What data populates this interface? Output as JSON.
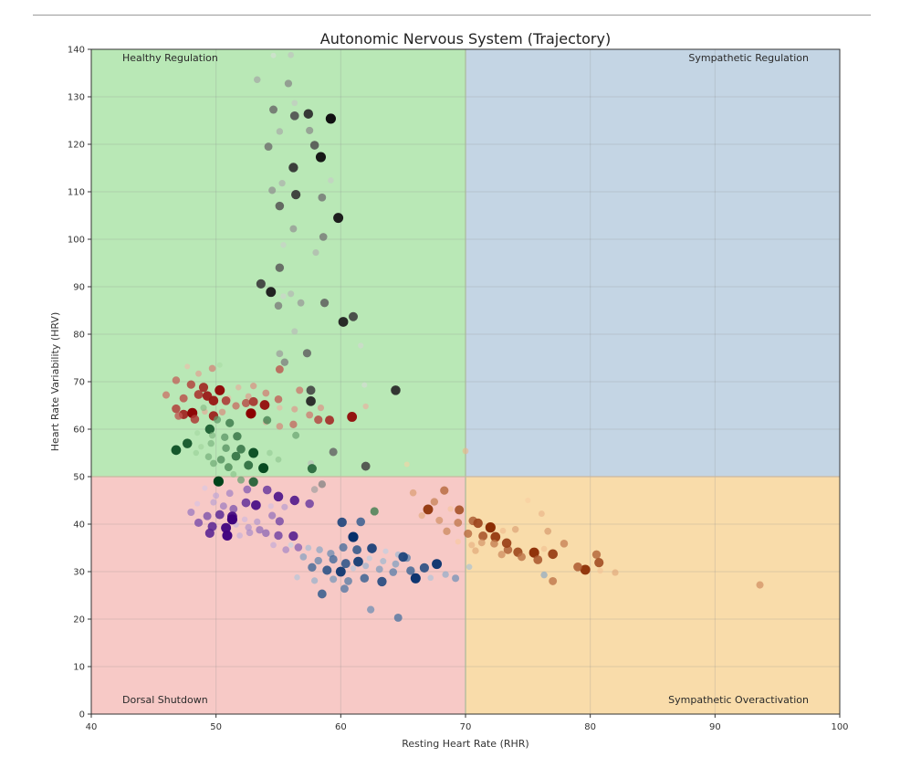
{
  "chart_data": {
    "type": "scatter",
    "title": "Autonomic Nervous System (Trajectory)",
    "xlabel": "Resting Heart Rate (RHR)",
    "ylabel": "Heart Rate Variability (HRV)",
    "xlim": [
      40,
      100
    ],
    "ylim": [
      0,
      140
    ],
    "x_ticks": [
      40,
      50,
      60,
      70,
      80,
      90,
      100
    ],
    "y_ticks": [
      0,
      10,
      20,
      30,
      40,
      50,
      60,
      70,
      80,
      90,
      100,
      110,
      120,
      130,
      140
    ],
    "grid": true,
    "thresholds": {
      "x": 70,
      "y": 50
    },
    "quadrants": [
      {
        "name": "Healthy Regulation",
        "x_range": [
          40,
          70
        ],
        "y_range": [
          50,
          140
        ],
        "color": "#b9e8b6",
        "label_anchor": "top-left"
      },
      {
        "name": "Sympathetic Regulation",
        "x_range": [
          70,
          100
        ],
        "y_range": [
          50,
          140
        ],
        "color": "#c4d5e4",
        "label_anchor": "top-right"
      },
      {
        "name": "Dorsal Shutdown",
        "x_range": [
          40,
          70
        ],
        "y_range": [
          0,
          50
        ],
        "color": "#f7c9c6",
        "label_anchor": "bottom-left"
      },
      {
        "name": "Sympathetic Overactivation",
        "x_range": [
          70,
          100
        ],
        "y_range": [
          0,
          50
        ],
        "color": "#f9dcaa",
        "label_anchor": "bottom-right"
      }
    ],
    "series": [
      {
        "name": "Greys cluster",
        "colormap": [
          "#dddddd",
          "#111111"
        ],
        "points": [
          [
            54.6,
            138.7
          ],
          [
            56.0,
            138.8
          ],
          [
            53.3,
            133.6
          ],
          [
            55.8,
            132.8
          ],
          [
            54.6,
            127.3
          ],
          [
            56.3,
            126.0
          ],
          [
            57.4,
            126.4
          ],
          [
            59.2,
            125.4
          ],
          [
            56.3,
            128.7
          ],
          [
            55.1,
            122.7
          ],
          [
            57.5,
            122.9
          ],
          [
            54.2,
            119.5
          ],
          [
            57.9,
            119.8
          ],
          [
            56.2,
            115.1
          ],
          [
            58.4,
            117.3
          ],
          [
            59.2,
            112.4
          ],
          [
            55.3,
            111.8
          ],
          [
            54.5,
            110.3
          ],
          [
            58.5,
            108.8
          ],
          [
            55.1,
            107.0
          ],
          [
            56.4,
            109.4
          ],
          [
            59.8,
            104.5
          ],
          [
            55.4,
            98.8
          ],
          [
            58.0,
            97.2
          ],
          [
            56.2,
            102.2
          ],
          [
            58.6,
            100.5
          ],
          [
            55.1,
            94.0
          ],
          [
            53.6,
            90.6
          ],
          [
            54.4,
            88.9
          ],
          [
            55.4,
            88.0
          ],
          [
            56.0,
            88.5
          ],
          [
            56.8,
            86.6
          ],
          [
            55.0,
            86.0
          ],
          [
            58.7,
            86.6
          ],
          [
            61.0,
            83.7
          ],
          [
            60.2,
            82.6
          ],
          [
            61.6,
            77.6
          ],
          [
            56.3,
            80.6
          ],
          [
            55.1,
            75.9
          ],
          [
            55.5,
            74.1
          ],
          [
            57.3,
            76.0
          ],
          [
            57.6,
            68.2
          ],
          [
            57.6,
            65.9
          ],
          [
            61.9,
            69.3
          ],
          [
            57.6,
            52.8
          ],
          [
            57.9,
            47.3
          ],
          [
            58.5,
            48.4
          ],
          [
            59.4,
            55.2
          ],
          [
            62.0,
            52.2
          ],
          [
            64.4,
            68.2
          ]
        ]
      },
      {
        "name": "Reds cluster",
        "colormap": [
          "#f7b5a8",
          "#8b0000"
        ],
        "points": [
          [
            47.7,
            73.2
          ],
          [
            48.6,
            71.7
          ],
          [
            49.7,
            72.8
          ],
          [
            46.8,
            70.3
          ],
          [
            48.0,
            69.4
          ],
          [
            49.0,
            68.8
          ],
          [
            50.3,
            68.2
          ],
          [
            51.8,
            68.8
          ],
          [
            53.0,
            69.1
          ],
          [
            46.0,
            67.2
          ],
          [
            47.4,
            66.5
          ],
          [
            48.6,
            67.3
          ],
          [
            49.8,
            66.0
          ],
          [
            51.0,
            66.6
          ],
          [
            52.6,
            66.9
          ],
          [
            54.0,
            67.6
          ],
          [
            55.0,
            66.3
          ],
          [
            46.8,
            64.3
          ],
          [
            47.4,
            63.1
          ],
          [
            48.1,
            63.4
          ],
          [
            49.1,
            63.7
          ],
          [
            50.5,
            63.6
          ],
          [
            51.6,
            64.9
          ],
          [
            52.4,
            65.5
          ],
          [
            53.0,
            65.8
          ],
          [
            53.9,
            65.1
          ],
          [
            55.1,
            64.5
          ],
          [
            56.3,
            64.2
          ],
          [
            57.5,
            63.0
          ],
          [
            47.0,
            62.8
          ],
          [
            48.3,
            62.1
          ],
          [
            49.8,
            62.8
          ],
          [
            52.8,
            63.3
          ],
          [
            54.0,
            61.5
          ],
          [
            55.1,
            60.6
          ],
          [
            56.2,
            61.0
          ],
          [
            58.2,
            62.0
          ],
          [
            59.1,
            61.9
          ],
          [
            60.9,
            62.6
          ],
          [
            62.0,
            64.8
          ],
          [
            58.4,
            64.5
          ],
          [
            56.7,
            68.2
          ],
          [
            55.1,
            72.6
          ],
          [
            50.8,
            66.0
          ],
          [
            49.3,
            67.0
          ]
        ]
      },
      {
        "name": "Greens cluster",
        "colormap": [
          "#a7dba2",
          "#00441b"
        ],
        "points": [
          [
            50.3,
            73.5
          ],
          [
            49.0,
            64.5
          ],
          [
            50.1,
            62.0
          ],
          [
            51.1,
            61.3
          ],
          [
            49.5,
            60.0
          ],
          [
            48.5,
            59.2
          ],
          [
            49.7,
            58.7
          ],
          [
            50.7,
            58.3
          ],
          [
            51.7,
            58.5
          ],
          [
            47.7,
            57.0
          ],
          [
            48.8,
            56.3
          ],
          [
            49.6,
            57.0
          ],
          [
            50.8,
            56.0
          ],
          [
            52.0,
            55.8
          ],
          [
            46.8,
            55.6
          ],
          [
            48.4,
            55.0
          ],
          [
            49.4,
            54.2
          ],
          [
            50.4,
            53.6
          ],
          [
            51.6,
            54.3
          ],
          [
            53.0,
            55.0
          ],
          [
            54.3,
            55.0
          ],
          [
            49.8,
            52.8
          ],
          [
            51.0,
            52.0
          ],
          [
            52.6,
            52.4
          ],
          [
            53.8,
            51.8
          ],
          [
            55.0,
            53.6
          ],
          [
            56.4,
            58.7
          ],
          [
            54.1,
            61.9
          ],
          [
            57.7,
            51.7
          ],
          [
            50.2,
            49.0
          ],
          [
            51.4,
            50.5
          ],
          [
            52.0,
            49.3
          ],
          [
            62.7,
            42.7
          ],
          [
            53.0,
            48.9
          ]
        ]
      },
      {
        "name": "Purples cluster",
        "colormap": [
          "#d4c6ea",
          "#3f007d"
        ],
        "points": [
          [
            49.1,
            47.6
          ],
          [
            50.0,
            46.0
          ],
          [
            51.1,
            46.5
          ],
          [
            52.5,
            47.3
          ],
          [
            54.1,
            47.2
          ],
          [
            55.0,
            45.8
          ],
          [
            48.5,
            44.3
          ],
          [
            49.8,
            44.6
          ],
          [
            50.6,
            43.8
          ],
          [
            51.4,
            43.2
          ],
          [
            52.4,
            44.5
          ],
          [
            53.2,
            44.0
          ],
          [
            54.4,
            43.8
          ],
          [
            55.5,
            43.6
          ],
          [
            48.0,
            42.5
          ],
          [
            49.3,
            41.7
          ],
          [
            50.3,
            42.0
          ],
          [
            51.3,
            41.6
          ],
          [
            52.3,
            41.0
          ],
          [
            53.3,
            40.5
          ],
          [
            54.5,
            41.8
          ],
          [
            48.6,
            40.3
          ],
          [
            49.7,
            39.5
          ],
          [
            50.8,
            39.2
          ],
          [
            51.6,
            39.9
          ],
          [
            52.6,
            39.3
          ],
          [
            53.5,
            38.8
          ],
          [
            55.1,
            40.6
          ],
          [
            49.5,
            38.1
          ],
          [
            50.9,
            37.6
          ],
          [
            51.9,
            37.6
          ],
          [
            52.7,
            38.2
          ],
          [
            54.0,
            38.1
          ],
          [
            55.0,
            37.6
          ],
          [
            56.2,
            37.5
          ],
          [
            51.3,
            41.0
          ],
          [
            54.6,
            35.6
          ],
          [
            55.6,
            34.6
          ],
          [
            56.6,
            35.1
          ],
          [
            57.5,
            44.3
          ],
          [
            56.3,
            45.0
          ]
        ]
      },
      {
        "name": "Blues cluster",
        "colormap": [
          "#b7d4ea",
          "#08306b"
        ],
        "points": [
          [
            56.0,
            35.6
          ],
          [
            57.4,
            35.0
          ],
          [
            58.3,
            34.6
          ],
          [
            59.2,
            33.8
          ],
          [
            60.2,
            35.1
          ],
          [
            61.3,
            34.6
          ],
          [
            62.5,
            34.9
          ],
          [
            63.6,
            34.3
          ],
          [
            64.6,
            33.6
          ],
          [
            57.0,
            33.1
          ],
          [
            58.2,
            32.3
          ],
          [
            59.4,
            32.6
          ],
          [
            60.4,
            31.7
          ],
          [
            61.4,
            32.1
          ],
          [
            62.3,
            32.8
          ],
          [
            63.4,
            32.2
          ],
          [
            64.4,
            31.6
          ],
          [
            65.3,
            32.9
          ],
          [
            57.7,
            30.9
          ],
          [
            58.9,
            30.3
          ],
          [
            60.0,
            30.0
          ],
          [
            61.0,
            30.7
          ],
          [
            62.0,
            31.2
          ],
          [
            63.1,
            30.5
          ],
          [
            64.2,
            29.9
          ],
          [
            65.6,
            30.2
          ],
          [
            66.7,
            30.8
          ],
          [
            67.7,
            31.6
          ],
          [
            56.5,
            28.8
          ],
          [
            57.9,
            28.1
          ],
          [
            59.4,
            28.4
          ],
          [
            60.6,
            28.0
          ],
          [
            61.9,
            28.6
          ],
          [
            63.3,
            27.9
          ],
          [
            66.0,
            28.6
          ],
          [
            67.2,
            28.7
          ],
          [
            68.4,
            29.4
          ],
          [
            69.2,
            28.6
          ],
          [
            60.3,
            26.4
          ],
          [
            61.6,
            40.5
          ],
          [
            60.1,
            40.4
          ],
          [
            61.0,
            37.3
          ],
          [
            70.3,
            31.0
          ],
          [
            76.3,
            29.3
          ],
          [
            62.4,
            22.0
          ],
          [
            64.6,
            20.3
          ],
          [
            58.5,
            25.3
          ],
          [
            65.0,
            33.1
          ]
        ]
      },
      {
        "name": "Oranges cluster",
        "colormap": [
          "#fdd0a2",
          "#8c2d04"
        ],
        "points": [
          [
            65.3,
            52.6
          ],
          [
            70.0,
            55.4
          ],
          [
            65.8,
            46.6
          ],
          [
            67.5,
            44.7
          ],
          [
            68.3,
            47.1
          ],
          [
            69.5,
            43.0
          ],
          [
            67.0,
            43.1
          ],
          [
            68.8,
            43.2
          ],
          [
            66.5,
            41.8
          ],
          [
            67.9,
            40.8
          ],
          [
            69.4,
            40.3
          ],
          [
            70.6,
            40.7
          ],
          [
            71.0,
            40.2
          ],
          [
            72.0,
            39.3
          ],
          [
            73.0,
            38.6
          ],
          [
            74.0,
            38.9
          ],
          [
            68.5,
            38.5
          ],
          [
            70.2,
            38.0
          ],
          [
            71.4,
            37.5
          ],
          [
            72.4,
            37.3
          ],
          [
            69.4,
            36.3
          ],
          [
            70.5,
            35.6
          ],
          [
            71.3,
            36.1
          ],
          [
            72.3,
            35.9
          ],
          [
            73.4,
            34.6
          ],
          [
            74.2,
            34.1
          ],
          [
            75.5,
            34.0
          ],
          [
            76.3,
            34.8
          ],
          [
            70.8,
            34.4
          ],
          [
            72.9,
            33.6
          ],
          [
            74.5,
            33.1
          ],
          [
            75.8,
            32.5
          ],
          [
            77.0,
            33.7
          ],
          [
            75.0,
            45.0
          ],
          [
            76.1,
            42.2
          ],
          [
            76.6,
            38.5
          ],
          [
            77.9,
            35.9
          ],
          [
            80.5,
            33.6
          ],
          [
            80.7,
            31.9
          ],
          [
            79.6,
            30.4
          ],
          [
            80.8,
            30.2
          ],
          [
            82.0,
            29.8
          ],
          [
            93.6,
            27.2
          ],
          [
            77.0,
            28.0
          ],
          [
            79.0,
            31.0
          ],
          [
            73.3,
            36.0
          ]
        ]
      }
    ]
  }
}
